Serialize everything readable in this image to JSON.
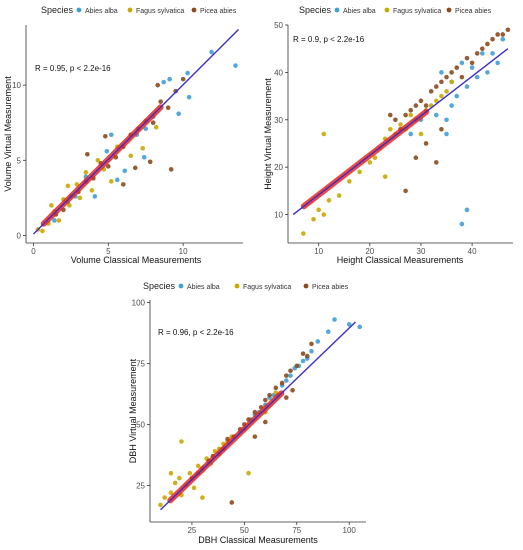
{
  "colors": {
    "Abies alba": "#3f9fd6",
    "Fagus sylvatica": "#c9a900",
    "Picea abies": "#8b4a1e",
    "fit_line": "#3a2ed0",
    "dense": "#e8281e"
  },
  "chart_data": [
    {
      "type": "scatter",
      "title": "",
      "xlabel": "Volume Classical Measurements",
      "ylabel": "Volume Virtual Measurement",
      "xlim": [
        -0.5,
        14
      ],
      "ylim": [
        -0.5,
        14
      ],
      "xticks": [
        0,
        5,
        10
      ],
      "yticks": [
        0,
        5,
        10
      ],
      "grid": false,
      "legend_title": "Species",
      "legend_position": "top",
      "annotation_r": "R = 0.95, p < 2.2e-16",
      "series": [
        {
          "name": "Abies alba",
          "points": [
            [
              10.3,
              10.8
            ],
            [
              13.5,
              11.3
            ],
            [
              11.9,
              12.2
            ],
            [
              10.4,
              9.2
            ],
            [
              9.7,
              8.1
            ],
            [
              9.1,
              10.4
            ],
            [
              8.7,
              10.2
            ],
            [
              8.0,
              7.9
            ],
            [
              6.9,
              6.7
            ],
            [
              7.5,
              7.1
            ],
            [
              7.4,
              5.2
            ],
            [
              5.6,
              3.7
            ],
            [
              6.1,
              4.3
            ],
            [
              5.2,
              6.7
            ],
            [
              4.9,
              5.6
            ],
            [
              4.1,
              2.6
            ],
            [
              3.5,
              3.9
            ],
            [
              2.8,
              2.6
            ],
            [
              2.3,
              2.2
            ],
            [
              1.4,
              1.0
            ]
          ]
        },
        {
          "name": "Fagus sylvatica",
          "points": [
            [
              0.3,
              0.4
            ],
            [
              0.6,
              0.3
            ],
            [
              1.0,
              0.8
            ],
            [
              1.4,
              1.6
            ],
            [
              1.7,
              1.0
            ],
            [
              2.0,
              2.4
            ],
            [
              2.4,
              2.0
            ],
            [
              2.9,
              3.4
            ],
            [
              3.1,
              2.5
            ],
            [
              3.5,
              4.2
            ],
            [
              3.9,
              3.0
            ],
            [
              4.3,
              5.0
            ],
            [
              4.7,
              4.4
            ],
            [
              5.2,
              3.6
            ],
            [
              5.6,
              5.9
            ],
            [
              6.5,
              5.3
            ],
            [
              7.3,
              5.8
            ],
            [
              8.2,
              7.2
            ],
            [
              2.3,
              3.3
            ],
            [
              1.2,
              2.0
            ]
          ]
        },
        {
          "name": "Picea abies",
          "points": [
            [
              1.5,
              1.4
            ],
            [
              2.0,
              1.7
            ],
            [
              2.5,
              2.6
            ],
            [
              3.0,
              2.9
            ],
            [
              3.5,
              3.6
            ],
            [
              4.0,
              3.8
            ],
            [
              4.5,
              4.8
            ],
            [
              5.0,
              4.6
            ],
            [
              5.5,
              5.2
            ],
            [
              6.0,
              5.9
            ],
            [
              6.5,
              6.7
            ],
            [
              7.0,
              7.1
            ],
            [
              7.5,
              7.6
            ],
            [
              8.0,
              7.5
            ],
            [
              8.5,
              8.9
            ],
            [
              9.0,
              8.5
            ],
            [
              9.5,
              9.6
            ],
            [
              10.0,
              10.4
            ],
            [
              6.8,
              4.5
            ],
            [
              7.8,
              4.9
            ],
            [
              9.2,
              4.4
            ],
            [
              6.0,
              3.4
            ],
            [
              4.8,
              6.6
            ],
            [
              8.3,
              10.0
            ],
            [
              3.6,
              5.4
            ]
          ]
        }
      ],
      "fit": {
        "x": [
          0,
          13.7
        ],
        "y": [
          0.1,
          13.7
        ]
      }
    },
    {
      "type": "scatter",
      "title": "",
      "xlabel": "Height Classical Measurements",
      "ylabel": "Height Virtual Measurement",
      "xlim": [
        4,
        48
      ],
      "ylim": [
        4,
        50
      ],
      "xticks": [
        10,
        20,
        30,
        40
      ],
      "yticks": [
        10,
        20,
        30,
        40,
        50
      ],
      "grid": false,
      "legend_title": "Species",
      "legend_position": "top",
      "annotation_r": "R = 0.9, p < 2.2e-16",
      "series": [
        {
          "name": "Abies alba",
          "points": [
            [
              34,
              40
            ],
            [
              36,
              38
            ],
            [
              38,
              42
            ],
            [
              40,
              41
            ],
            [
              42,
              44
            ],
            [
              44,
              44
            ],
            [
              46,
              47
            ],
            [
              37,
              35
            ],
            [
              39,
              37
            ],
            [
              41,
              39
            ],
            [
              43,
              40
            ],
            [
              36,
              33
            ],
            [
              35,
              30
            ],
            [
              33,
              31
            ],
            [
              30,
              30
            ],
            [
              28,
              27
            ],
            [
              39,
              11
            ],
            [
              38,
              8
            ],
            [
              35,
              27
            ],
            [
              45,
              42
            ]
          ]
        },
        {
          "name": "Fagus sylvatica",
          "points": [
            [
              7,
              6
            ],
            [
              9,
              9
            ],
            [
              10,
              11
            ],
            [
              11,
              10
            ],
            [
              12,
              13
            ],
            [
              14,
              14
            ],
            [
              16,
              17
            ],
            [
              18,
              19
            ],
            [
              20,
              21
            ],
            [
              21,
              22
            ],
            [
              22,
              24
            ],
            [
              23,
              26
            ],
            [
              24,
              28
            ],
            [
              25,
              27
            ],
            [
              26,
              29
            ],
            [
              27,
              28
            ],
            [
              28,
              31
            ],
            [
              29,
              30
            ],
            [
              30,
              27
            ],
            [
              31,
              32
            ],
            [
              32,
              33
            ],
            [
              33,
              34
            ],
            [
              34,
              35
            ],
            [
              35,
              36
            ],
            [
              36,
              38
            ],
            [
              11,
              27
            ],
            [
              23,
              18
            ]
          ]
        },
        {
          "name": "Picea abies",
          "points": [
            [
              24,
              31
            ],
            [
              25,
              30
            ],
            [
              26,
              28
            ],
            [
              27,
              31
            ],
            [
              28,
              32
            ],
            [
              29,
              33
            ],
            [
              30,
              34
            ],
            [
              31,
              33
            ],
            [
              32,
              36
            ],
            [
              33,
              37
            ],
            [
              34,
              38
            ],
            [
              35,
              39
            ],
            [
              36,
              40
            ],
            [
              37,
              41
            ],
            [
              38,
              39
            ],
            [
              39,
              43
            ],
            [
              40,
              42
            ],
            [
              41,
              44
            ],
            [
              42,
              45
            ],
            [
              43,
              46
            ],
            [
              44,
              47
            ],
            [
              45,
              48
            ],
            [
              46,
              48
            ],
            [
              47,
              49
            ],
            [
              31,
              25
            ],
            [
              34,
              28
            ],
            [
              27,
              15
            ],
            [
              33,
              21
            ],
            [
              29,
              22
            ]
          ]
        }
      ],
      "fit": {
        "x": [
          5,
          47
        ],
        "y": [
          10,
          45
        ]
      }
    },
    {
      "type": "scatter",
      "title": "",
      "xlabel": "DBH Classical Measurements",
      "ylabel": "DBH Virtual Measurement",
      "xlim": [
        5,
        108
      ],
      "ylim": [
        10,
        101
      ],
      "xticks": [
        25,
        50,
        75,
        100
      ],
      "yticks": [
        25,
        50,
        75,
        100
      ],
      "grid": false,
      "legend_title": "Species",
      "legend_position": "top",
      "annotation_r": "R = 0.96, p < 2.2e-16",
      "series": [
        {
          "name": "Abies alba",
          "points": [
            [
              105,
              90
            ],
            [
              100,
              91
            ],
            [
              93,
              93
            ],
            [
              90,
              88
            ],
            [
              85,
              84
            ],
            [
              82,
              80
            ],
            [
              80,
              77
            ],
            [
              78,
              76
            ],
            [
              76,
              74
            ],
            [
              74,
              73
            ],
            [
              72,
              70
            ],
            [
              70,
              68
            ],
            [
              68,
              66
            ],
            [
              66,
              62
            ],
            [
              64,
              62
            ],
            [
              62,
              61
            ],
            [
              60,
              58
            ],
            [
              57,
              55
            ],
            [
              55,
              54
            ],
            [
              53,
              52
            ],
            [
              50,
              48
            ],
            [
              48,
              47
            ]
          ]
        },
        {
          "name": "Fagus sylvatica",
          "points": [
            [
              10,
              17
            ],
            [
              12,
              20
            ],
            [
              15,
              22
            ],
            [
              17,
              26
            ],
            [
              19,
              28
            ],
            [
              20,
              21
            ],
            [
              22,
              25
            ],
            [
              24,
              30
            ],
            [
              26,
              24
            ],
            [
              28,
              33
            ],
            [
              30,
              31
            ],
            [
              32,
              36
            ],
            [
              34,
              34
            ],
            [
              36,
              39
            ],
            [
              38,
              40
            ],
            [
              40,
              42
            ],
            [
              42,
              43
            ],
            [
              44,
              45
            ],
            [
              20,
              43
            ],
            [
              15,
              30
            ],
            [
              30,
              20
            ],
            [
              52,
              30
            ],
            [
              60,
              55
            ],
            [
              65,
              63
            ]
          ]
        },
        {
          "name": "Picea abies",
          "points": [
            [
              25,
              28
            ],
            [
              28,
              30
            ],
            [
              30,
              32
            ],
            [
              33,
              35
            ],
            [
              35,
              37
            ],
            [
              38,
              38
            ],
            [
              40,
              40
            ],
            [
              42,
              44
            ],
            [
              45,
              45
            ],
            [
              48,
              48
            ],
            [
              50,
              50
            ],
            [
              52,
              52
            ],
            [
              55,
              55
            ],
            [
              58,
              57
            ],
            [
              60,
              60
            ],
            [
              62,
              62
            ],
            [
              65,
              65
            ],
            [
              68,
              67
            ],
            [
              70,
              70
            ],
            [
              72,
              72
            ],
            [
              75,
              74
            ],
            [
              78,
              79
            ],
            [
              80,
              78
            ],
            [
              82,
              83
            ],
            [
              44,
              18
            ],
            [
              55,
              45
            ],
            [
              60,
              51
            ],
            [
              70,
              61
            ],
            [
              73,
              64
            ]
          ]
        }
      ],
      "fit": {
        "x": [
          10,
          103
        ],
        "y": [
          15,
          92
        ]
      }
    }
  ]
}
